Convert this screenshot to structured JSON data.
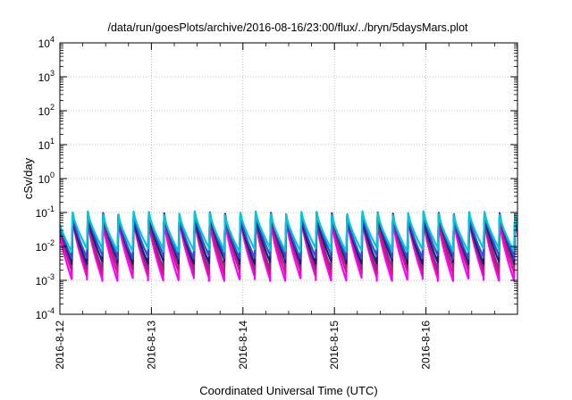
{
  "chart_data": {
    "type": "line",
    "title": "/data/run/goesPlots/archive/2016-08-16/23:00/flux/../bryn/5daysMars.plot",
    "xlabel": "Coordinated Universal Time (UTC)",
    "ylabel": "cSv/day",
    "x_range": [
      "2016-08-12",
      "2016-08-17"
    ],
    "x_ticks": [
      "2016-8-12",
      "2016-8-13",
      "2016-8-14",
      "2016-8-15",
      "2016-8-16"
    ],
    "y_scale": "log",
    "ylim": [
      0.0001,
      10000
    ],
    "y_tick_mantissa": "10",
    "y_tick_exponents": [
      "-4",
      "-3",
      "-2",
      "-1",
      "0",
      "1",
      "2",
      "3",
      "4"
    ],
    "grid": true,
    "sawtooth_period_hours": 4,
    "series": [
      {
        "color": "#ff00ff",
        "peak": 0.06,
        "trough": 0.0011
      },
      {
        "color": "#dd1188",
        "peak": 0.075,
        "trough": 0.0017
      },
      {
        "color": "#8b2a8b",
        "peak": 0.08,
        "trough": 0.0024
      },
      {
        "color": "#1e1e6e",
        "peak": 0.085,
        "trough": 0.0035
      },
      {
        "color": "#2f4fd6",
        "peak": 0.09,
        "trough": 0.005
      },
      {
        "color": "#00c8d8",
        "peak": 0.095,
        "trough": 0.008
      }
    ]
  }
}
